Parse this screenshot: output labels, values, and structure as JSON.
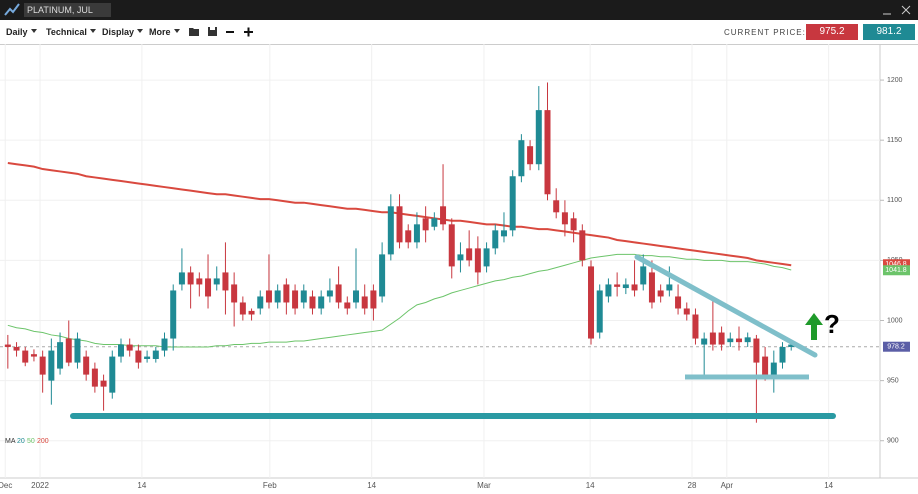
{
  "ui": {
    "symbol": "PLATINUM, JUL",
    "menus": [
      "Daily",
      "Technical",
      "Display",
      "More"
    ],
    "current_price_label": "CURRENT PRICE:",
    "bid": "975.2",
    "ask": "981.2"
  },
  "chart_data": {
    "type": "candlestick",
    "up_color": "#1f8a94",
    "down_color": "#c8373f",
    "open": [
      980,
      978,
      975,
      972,
      970,
      950,
      960,
      985,
      965,
      970,
      960,
      950,
      940,
      970,
      980,
      975,
      968,
      968,
      975,
      985,
      1030,
      1040,
      1035,
      1035,
      1030,
      1040,
      1030,
      1015,
      1008,
      1010,
      1025,
      1015,
      1030,
      1025,
      1015,
      1020,
      1010,
      1020,
      1030,
      1015,
      1015,
      1020,
      1025,
      1020,
      1055,
      1095,
      1075,
      1065,
      1085,
      1078,
      1095,
      1080,
      1050,
      1060,
      1060,
      1045,
      1060,
      1070,
      1075,
      1120,
      1145,
      1130,
      1175,
      1100,
      1090,
      1085,
      1075,
      1045,
      990,
      1020,
      1030,
      1027,
      1030,
      1030,
      1040,
      1025,
      1025,
      1020,
      1010,
      1005,
      980,
      990,
      990,
      982,
      985,
      982,
      985,
      970,
      955,
      965,
      978
    ],
    "high": [
      988,
      982,
      978,
      976,
      975,
      985,
      990,
      1000,
      990,
      975,
      965,
      955,
      975,
      985,
      985,
      980,
      975,
      978,
      990,
      1030,
      1060,
      1045,
      1040,
      1055,
      1045,
      1065,
      1040,
      1020,
      1010,
      1025,
      1055,
      1030,
      1035,
      1030,
      1030,
      1025,
      1025,
      1035,
      1045,
      1020,
      1060,
      1030,
      1030,
      1065,
      1105,
      1105,
      1080,
      1090,
      1095,
      1090,
      1130,
      1085,
      1065,
      1075,
      1070,
      1065,
      1080,
      1090,
      1125,
      1155,
      1150,
      1195,
      1198,
      1110,
      1100,
      1090,
      1080,
      1050,
      1030,
      1035,
      1040,
      1035,
      1050,
      1055,
      1050,
      1030,
      1045,
      1030,
      1015,
      1010,
      990,
      1020,
      995,
      990,
      995,
      990,
      988,
      978,
      975,
      982,
      983
    ],
    "low": [
      960,
      970,
      962,
      966,
      940,
      930,
      955,
      962,
      960,
      950,
      940,
      925,
      935,
      965,
      970,
      960,
      965,
      965,
      970,
      975,
      1025,
      1010,
      1020,
      1010,
      1025,
      1005,
      995,
      1000,
      1000,
      1005,
      1010,
      1010,
      1005,
      1005,
      1010,
      1005,
      1005,
      1015,
      1010,
      1005,
      1010,
      1005,
      1000,
      1015,
      1050,
      1060,
      1060,
      1060,
      1065,
      1075,
      1075,
      1035,
      1040,
      1045,
      1030,
      1040,
      1055,
      1065,
      1070,
      1115,
      1125,
      1125,
      1100,
      1085,
      1070,
      1065,
      1045,
      980,
      985,
      1015,
      1020,
      1022,
      1020,
      1025,
      1010,
      1015,
      1020,
      1005,
      1000,
      980,
      955,
      975,
      975,
      978,
      975,
      978,
      915,
      950,
      940,
      960,
      975
    ],
    "close": [
      978,
      975,
      965,
      970,
      955,
      975,
      982,
      965,
      985,
      955,
      945,
      945,
      970,
      980,
      975,
      965,
      970,
      975,
      985,
      1025,
      1040,
      1030,
      1030,
      1020,
      1035,
      1025,
      1015,
      1005,
      1005,
      1020,
      1015,
      1025,
      1015,
      1010,
      1025,
      1010,
      1020,
      1025,
      1015,
      1010,
      1025,
      1010,
      1010,
      1055,
      1095,
      1065,
      1065,
      1080,
      1075,
      1085,
      1080,
      1045,
      1055,
      1050,
      1040,
      1060,
      1075,
      1075,
      1120,
      1150,
      1130,
      1175,
      1105,
      1090,
      1080,
      1075,
      1050,
      985,
      1025,
      1030,
      1028,
      1030,
      1025,
      1045,
      1015,
      1020,
      1030,
      1010,
      1005,
      985,
      985,
      980,
      980,
      985,
      982,
      986,
      965,
      955,
      965,
      978,
      980
    ],
    "series": [
      {
        "name": "50",
        "color": "#6cc46a",
        "values": [
          996,
          994,
          993,
          991,
          990,
          988,
          987,
          985,
          984,
          983,
          981,
          980,
          980,
          980,
          979,
          979,
          979,
          979,
          978,
          978,
          978,
          978,
          978,
          978,
          979,
          979,
          980,
          980,
          981,
          981,
          982,
          982,
          982,
          983,
          983,
          984,
          985,
          986,
          987,
          988,
          989,
          990,
          991,
          992,
          997,
          1002,
          1008,
          1013,
          1015,
          1018,
          1020,
          1023,
          1025,
          1027,
          1029,
          1031,
          1033,
          1034,
          1036,
          1037,
          1039,
          1041,
          1042,
          1044,
          1046,
          1048,
          1050,
          1052,
          1053,
          1054,
          1055,
          1055,
          1055,
          1054,
          1054,
          1053,
          1053,
          1052,
          1051,
          1051,
          1050,
          1050,
          1050,
          1049,
          1049,
          1049,
          1048,
          1047,
          1045,
          1044,
          1042
        ]
      },
      {
        "name": "200",
        "color": "#d9493f",
        "values": [
          1131,
          1130,
          1129,
          1128,
          1126,
          1125,
          1124,
          1123,
          1122,
          1120,
          1119,
          1118,
          1117,
          1116,
          1115,
          1114,
          1113,
          1112,
          1111,
          1110,
          1109,
          1108,
          1107,
          1106,
          1105,
          1105,
          1104,
          1103,
          1102,
          1101,
          1101,
          1100,
          1099,
          1098,
          1098,
          1097,
          1096,
          1095,
          1094,
          1093,
          1093,
          1092,
          1091,
          1090,
          1090,
          1089,
          1088,
          1087,
          1086,
          1085,
          1084,
          1083,
          1083,
          1082,
          1081,
          1080,
          1080,
          1079,
          1078,
          1078,
          1077,
          1076,
          1076,
          1075,
          1074,
          1073,
          1072,
          1071,
          1070,
          1069,
          1067,
          1066,
          1065,
          1064,
          1063,
          1062,
          1061,
          1060,
          1059,
          1058,
          1057,
          1056,
          1055,
          1054,
          1053,
          1052,
          1050,
          1049,
          1048,
          1047,
          1046
        ]
      }
    ],
    "legend_title": "MA",
    "legend_extra": {
      "name": "20",
      "color": "#1f8a94"
    },
    "xlim": [
      -0.9,
      100.2
    ],
    "xticks": [
      {
        "value": -0.3,
        "label": "Dec"
      },
      {
        "value": 3.7,
        "label": "2022"
      },
      {
        "value": 15.4,
        "label": "14"
      },
      {
        "value": 30.1,
        "label": "Feb"
      },
      {
        "value": 41.8,
        "label": "14"
      },
      {
        "value": 54.7,
        "label": "Mar"
      },
      {
        "value": 66.9,
        "label": "14"
      },
      {
        "value": 78.6,
        "label": "28"
      },
      {
        "value": 82.6,
        "label": "Apr"
      },
      {
        "value": 94.3,
        "label": "14"
      }
    ],
    "ylim": [
      869,
      1230
    ],
    "yticks": [
      900,
      950,
      1000,
      1050,
      1100,
      1150,
      1200
    ],
    "price_labels": [
      {
        "value": 1046.8,
        "label": "1046.8",
        "color": "#d9493f"
      },
      {
        "value": 1041.8,
        "label": "1041.8",
        "color": "#6cc46a"
      },
      {
        "value": 978.2,
        "label": "978.2",
        "color": "#5b5ea6"
      }
    ],
    "current_price_line": 978.2,
    "annotation": "?",
    "grid": true
  }
}
